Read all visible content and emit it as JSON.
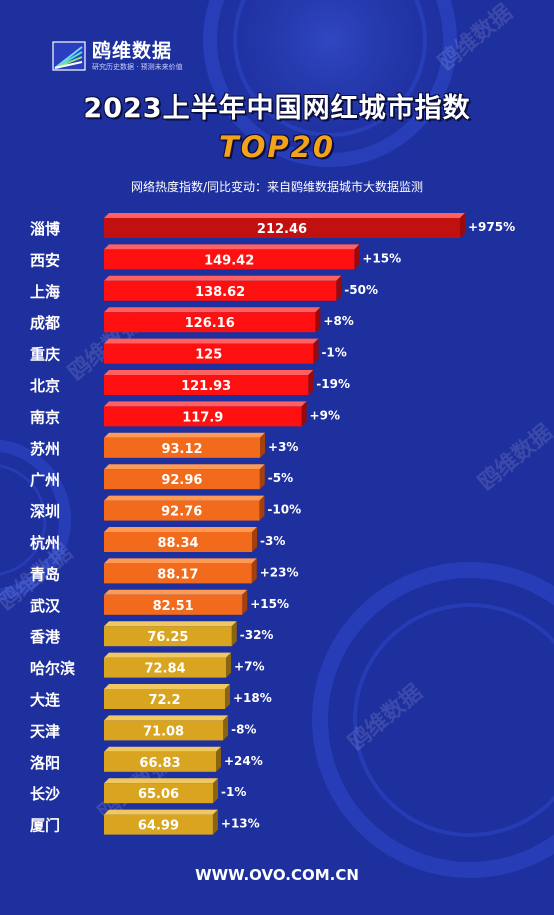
{
  "brand": {
    "name": "鸥维数据",
    "slogan": "研究历史数据 · 预测未来价值",
    "watermark": "鸥维数据"
  },
  "header": {
    "title_line1": "2023上半年中国网红城市指数",
    "title_line2": "TOP20",
    "subtitle": "网络热度指数/同比变动：来自鸥维数据城市大数据监测"
  },
  "footer": {
    "url": "WWW.OVO.COM.CN"
  },
  "colors": {
    "background": "#1e2f9e",
    "tier1": "#ff1010",
    "tier1_top": "#c01010",
    "tier2": "#f26a1b",
    "tier3": "#d9a520",
    "title_accent": "#f4a21a"
  },
  "chart_data": {
    "type": "bar",
    "orientation": "horizontal",
    "categories": [
      "淄博",
      "西安",
      "上海",
      "成都",
      "重庆",
      "北京",
      "南京",
      "苏州",
      "广州",
      "深圳",
      "杭州",
      "青岛",
      "武汉",
      "香港",
      "哈尔滨",
      "大连",
      "天津",
      "洛阳",
      "长沙",
      "厦门"
    ],
    "values": [
      212.46,
      149.42,
      138.62,
      126.16,
      125,
      121.93,
      117.9,
      93.12,
      92.96,
      92.76,
      88.34,
      88.17,
      82.51,
      76.25,
      72.84,
      72.2,
      71.08,
      66.83,
      65.06,
      64.99
    ],
    "value_labels": [
      "212.46",
      "149.42",
      "138.62",
      "126.16",
      "125",
      "121.93",
      "117.9",
      "93.12",
      "92.96",
      "92.76",
      "88.34",
      "88.17",
      "82.51",
      "76.25",
      "72.84",
      "72.2",
      "71.08",
      "66.83",
      "65.06",
      "64.99"
    ],
    "yoy_change": [
      "+975%",
      "+15%",
      "-50%",
      "+8%",
      "-1%",
      "-19%",
      "+9%",
      "+3%",
      "-5%",
      "-10%",
      "-3%",
      "+23%",
      "+15%",
      "-32%",
      "+7%",
      "+18%",
      "-8%",
      "+24%",
      "-1%",
      "+13%"
    ],
    "tiers": [
      1,
      1,
      1,
      1,
      1,
      1,
      1,
      2,
      2,
      2,
      2,
      2,
      2,
      3,
      3,
      3,
      3,
      3,
      3,
      3
    ],
    "xlim": [
      0,
      212.46
    ],
    "grid": false,
    "legend": "none"
  }
}
